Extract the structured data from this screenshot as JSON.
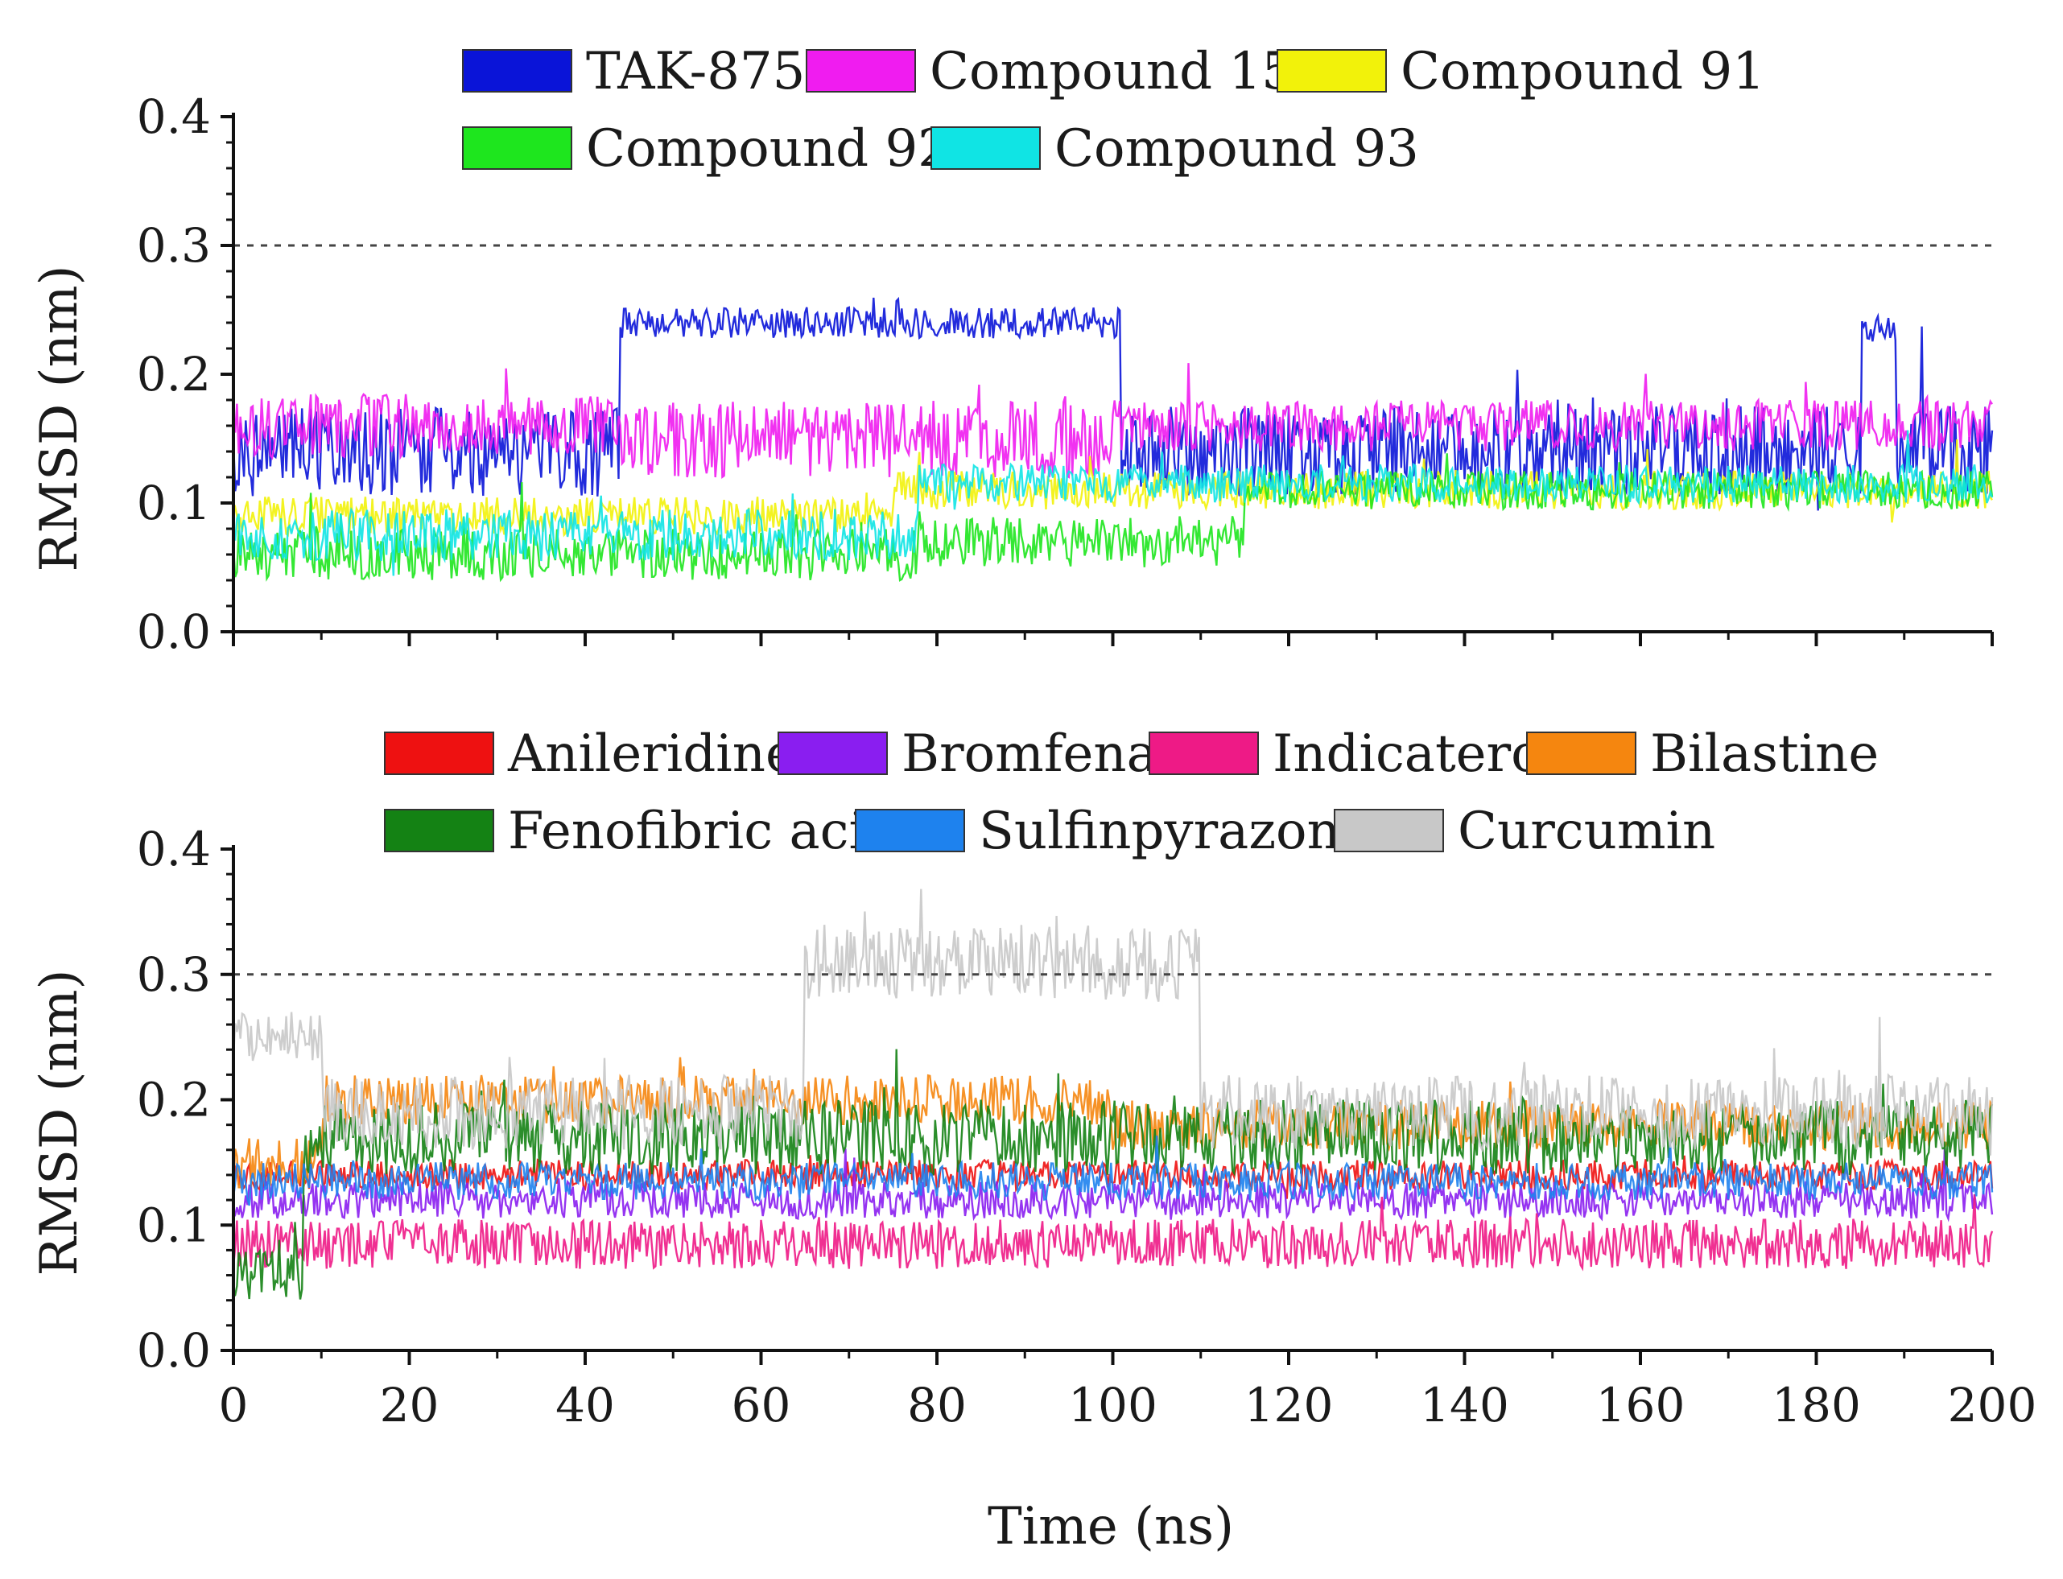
{
  "figure": {
    "shared_xlabel": "Time (ns)",
    "threshold_value": 0.3
  },
  "chart_data": [
    {
      "type": "line",
      "panel": "top",
      "xlabel": "",
      "ylabel": "RMSD (nm)",
      "xlim": [
        0,
        200
      ],
      "ylim": [
        0.0,
        0.4
      ],
      "x_ticks": [
        "0",
        "20",
        "40",
        "60",
        "80",
        "100",
        "120",
        "140",
        "160",
        "180",
        "200"
      ],
      "y_ticks": [
        "0.0",
        "0.1",
        "0.2",
        "0.3",
        "0.4"
      ],
      "threshold": 0.3,
      "legend_placement": "top-center",
      "series": [
        {
          "name": "TAK-875",
          "color": "#0a14d8",
          "segments": [
            {
              "from": 0,
              "to": 44,
              "mean": 0.14,
              "spread": 0.035
            },
            {
              "from": 44,
              "to": 101,
              "mean": 0.24,
              "spread": 0.012
            },
            {
              "from": 101,
              "to": 185,
              "mean": 0.14,
              "spread": 0.035
            },
            {
              "from": 185,
              "to": 189,
              "mean": 0.235,
              "spread": 0.01
            },
            {
              "from": 189,
              "to": 200,
              "mean": 0.14,
              "spread": 0.035
            }
          ]
        },
        {
          "name": "Compound 15",
          "color": "#f01cf0",
          "segments": [
            {
              "from": 0,
              "to": 44,
              "mean": 0.16,
              "spread": 0.025
            },
            {
              "from": 44,
              "to": 100,
              "mean": 0.15,
              "spread": 0.03
            },
            {
              "from": 100,
              "to": 200,
              "mean": 0.16,
              "spread": 0.02
            }
          ]
        },
        {
          "name": "Compound 91",
          "color": "#f2f20a",
          "segments": [
            {
              "from": 0,
              "to": 75,
              "mean": 0.09,
              "spread": 0.015
            },
            {
              "from": 75,
              "to": 200,
              "mean": 0.11,
              "spread": 0.015
            }
          ]
        },
        {
          "name": "Compound 92",
          "color": "#1ee61e",
          "segments": [
            {
              "from": 0,
              "to": 78,
              "mean": 0.06,
              "spread": 0.02
            },
            {
              "from": 78,
              "to": 115,
              "mean": 0.07,
              "spread": 0.02
            },
            {
              "from": 115,
              "to": 200,
              "mean": 0.11,
              "spread": 0.015
            }
          ]
        },
        {
          "name": "Compound 93",
          "color": "#10e4e4",
          "segments": [
            {
              "from": 0,
              "to": 78,
              "mean": 0.075,
              "spread": 0.02
            },
            {
              "from": 78,
              "to": 200,
              "mean": 0.115,
              "spread": 0.015
            }
          ]
        }
      ]
    },
    {
      "type": "line",
      "panel": "bottom",
      "xlabel": "Time (ns)",
      "ylabel": "RMSD (nm)",
      "xlim": [
        0,
        200
      ],
      "ylim": [
        0.0,
        0.4
      ],
      "x_ticks": [
        "0",
        "20",
        "40",
        "60",
        "80",
        "100",
        "120",
        "140",
        "160",
        "180",
        "200"
      ],
      "y_ticks": [
        "0.0",
        "0.1",
        "0.2",
        "0.3",
        "0.4"
      ],
      "threshold": 0.3,
      "legend_placement": "top-center",
      "series": [
        {
          "name": "Anileridine",
          "color": "#ee1111",
          "segments": [
            {
              "from": 0,
              "to": 200,
              "mean": 0.14,
              "spread": 0.012
            }
          ]
        },
        {
          "name": "Bromfenac",
          "color": "#8a1ef0",
          "segments": [
            {
              "from": 0,
              "to": 200,
              "mean": 0.12,
              "spread": 0.015
            }
          ]
        },
        {
          "name": "Indicaterol",
          "color": "#ee1a86",
          "segments": [
            {
              "from": 0,
              "to": 200,
              "mean": 0.085,
              "spread": 0.02
            }
          ]
        },
        {
          "name": "Bilastine",
          "color": "#f5860f",
          "segments": [
            {
              "from": 0,
              "to": 10,
              "mean": 0.15,
              "spread": 0.02
            },
            {
              "from": 10,
              "to": 100,
              "mean": 0.2,
              "spread": 0.02
            },
            {
              "from": 100,
              "to": 200,
              "mean": 0.18,
              "spread": 0.02
            }
          ]
        },
        {
          "name": "Fenofibric acid",
          "color": "#148214",
          "segments": [
            {
              "from": 0,
              "to": 8,
              "mean": 0.06,
              "spread": 0.02
            },
            {
              "from": 8,
              "to": 200,
              "mean": 0.17,
              "spread": 0.03
            }
          ]
        },
        {
          "name": "Sulfinpyrazone",
          "color": "#1e82ee",
          "segments": [
            {
              "from": 0,
              "to": 200,
              "mean": 0.135,
              "spread": 0.015
            }
          ]
        },
        {
          "name": "Curcumin",
          "color": "#c8c8c8",
          "segments": [
            {
              "from": 0,
              "to": 10,
              "mean": 0.25,
              "spread": 0.02
            },
            {
              "from": 10,
              "to": 65,
              "mean": 0.19,
              "spread": 0.03
            },
            {
              "from": 65,
              "to": 110,
              "mean": 0.31,
              "spread": 0.03
            },
            {
              "from": 110,
              "to": 200,
              "mean": 0.19,
              "spread": 0.03
            }
          ]
        }
      ]
    }
  ]
}
